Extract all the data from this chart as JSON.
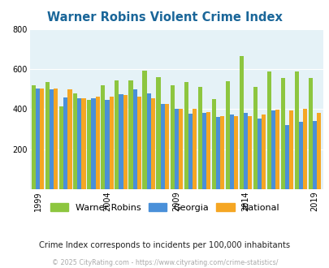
{
  "title": "Warner Robins Violent Crime Index",
  "subtitle": "Crime Index corresponds to incidents per 100,000 inhabitants",
  "footer": "© 2025 CityRating.com - https://www.cityrating.com/crime-statistics/",
  "years": [
    1999,
    2000,
    2001,
    2002,
    2003,
    2004,
    2005,
    2006,
    2007,
    2008,
    2009,
    2010,
    2011,
    2012,
    2013,
    2014,
    2015,
    2016,
    2017,
    2018,
    2019
  ],
  "warner_robins": [
    520,
    535,
    415,
    480,
    445,
    520,
    545,
    545,
    595,
    560,
    520,
    535,
    510,
    450,
    540,
    665,
    510,
    590,
    555,
    590,
    555
  ],
  "georgia": [
    505,
    500,
    460,
    455,
    455,
    448,
    475,
    498,
    480,
    425,
    400,
    378,
    383,
    363,
    375,
    380,
    355,
    395,
    320,
    335,
    340
  ],
  "national": [
    505,
    505,
    500,
    455,
    465,
    462,
    473,
    465,
    455,
    425,
    400,
    400,
    387,
    365,
    367,
    365,
    372,
    398,
    395,
    400,
    380
  ],
  "bar_colors": {
    "warner_robins": "#8dc63f",
    "georgia": "#4a90d9",
    "national": "#f5a623"
  },
  "ylim": [
    0,
    800
  ],
  "yticks": [
    200,
    400,
    600,
    800
  ],
  "xtick_years": [
    1999,
    2004,
    2009,
    2014,
    2019
  ],
  "bg_color": "#e5f2f7",
  "title_color": "#1a6699",
  "subtitle_color": "#222222",
  "footer_color": "#aaaaaa"
}
